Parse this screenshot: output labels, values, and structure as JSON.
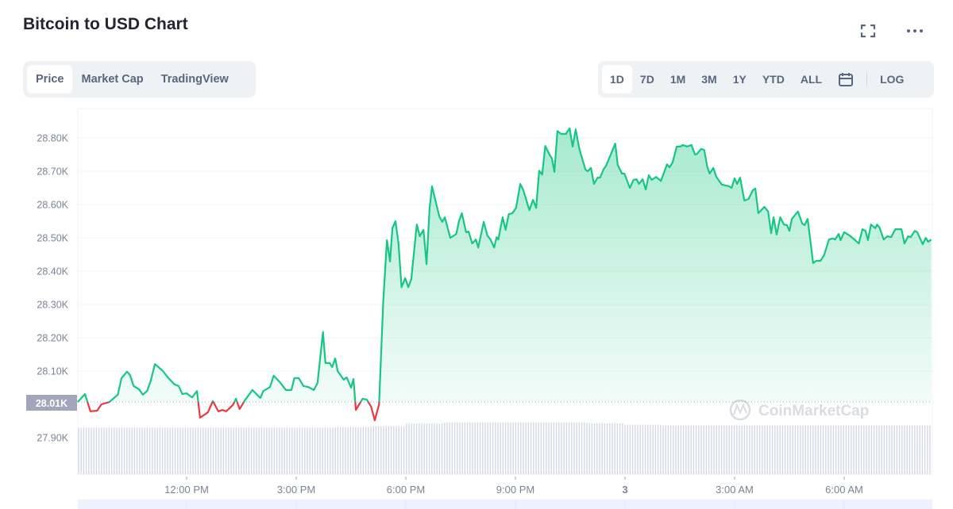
{
  "header": {
    "title": "Bitcoin to USD Chart",
    "fullscreen_icon": "expand-icon",
    "more_icon": "more-horizontal-icon"
  },
  "view_tabs": [
    {
      "label": "Price",
      "active": true
    },
    {
      "label": "Market Cap",
      "active": false
    },
    {
      "label": "TradingView",
      "active": false
    }
  ],
  "range_tabs": [
    {
      "label": "1D",
      "active": true
    },
    {
      "label": "7D",
      "active": false
    },
    {
      "label": "1M",
      "active": false
    },
    {
      "label": "3M",
      "active": false
    },
    {
      "label": "1Y",
      "active": false
    },
    {
      "label": "YTD",
      "active": false
    },
    {
      "label": "ALL",
      "active": false
    }
  ],
  "calendar_icon": "calendar-icon",
  "log_label": "LOG",
  "watermark": "CoinMarketCap",
  "colors": {
    "up": "#16c784",
    "down": "#ea3943",
    "baseline_label_bg": "#a1a7bb",
    "volume": "#d1d6e6",
    "navigator": "#eef2fe"
  },
  "chart_data": {
    "type": "area",
    "title": "",
    "xlabel": "",
    "ylabel": "",
    "ylim": [
      27800,
      28900
    ],
    "y_ticks": [
      "28.80K",
      "28.70K",
      "28.60K",
      "28.50K",
      "28.40K",
      "28.30K",
      "28.20K",
      "28.10K",
      "27.90K"
    ],
    "y_tick_values": [
      28800,
      28700,
      28600,
      28500,
      28400,
      28300,
      28200,
      28100,
      27900
    ],
    "x_ticks": [
      "12:00 PM",
      "3:00 PM",
      "6:00 PM",
      "9:00 PM",
      "3",
      "3:00 AM",
      "6:00 AM"
    ],
    "x_tick_times": [
      "12:00",
      "15:00",
      "18:00",
      "21:00",
      "24:00",
      "27:00",
      "30:00"
    ],
    "baseline": {
      "label": "28.01K",
      "value": 28007
    },
    "grid": true,
    "series": [
      {
        "points": [
          [
            "09:01",
            28007
          ],
          [
            "09:13",
            28031
          ],
          [
            "09:22",
            27979
          ],
          [
            "09:33",
            27981
          ],
          [
            "09:40",
            28000
          ],
          [
            "09:53",
            28007
          ],
          [
            "10:07",
            28029
          ],
          [
            "10:13",
            28079
          ],
          [
            "10:22",
            28098
          ],
          [
            "10:27",
            28088
          ],
          [
            "10:33",
            28055
          ],
          [
            "10:42",
            28045
          ],
          [
            "10:48",
            28029
          ],
          [
            "10:55",
            28040
          ],
          [
            "11:01",
            28071
          ],
          [
            "11:08",
            28121
          ],
          [
            "11:21",
            28100
          ],
          [
            "11:30",
            28079
          ],
          [
            "11:40",
            28060
          ],
          [
            "11:47",
            28055
          ],
          [
            "11:53",
            28031
          ],
          [
            "12:00",
            28033
          ],
          [
            "12:09",
            28021
          ],
          [
            "12:17",
            28040
          ],
          [
            "12:22",
            27960
          ],
          [
            "12:35",
            27976
          ],
          [
            "12:43",
            28010
          ],
          [
            "12:52",
            27979
          ],
          [
            "12:59",
            27983
          ],
          [
            "13:05",
            27979
          ],
          [
            "13:16",
            27998
          ],
          [
            "13:21",
            28017
          ],
          [
            "13:27",
            27986
          ],
          [
            "13:35",
            28010
          ],
          [
            "13:48",
            28043
          ],
          [
            "14:01",
            28019
          ],
          [
            "14:06",
            28040
          ],
          [
            "14:17",
            28052
          ],
          [
            "14:23",
            28086
          ],
          [
            "14:33",
            28067
          ],
          [
            "14:43",
            28043
          ],
          [
            "14:52",
            28043
          ],
          [
            "14:57",
            28079
          ],
          [
            "15:04",
            28079
          ],
          [
            "15:12",
            28055
          ],
          [
            "15:20",
            28052
          ],
          [
            "15:29",
            28043
          ],
          [
            "15:35",
            28064
          ],
          [
            "15:44",
            28217
          ],
          [
            "15:48",
            28124
          ],
          [
            "15:55",
            28124
          ],
          [
            "15:59",
            28112
          ],
          [
            "16:04",
            28138
          ],
          [
            "16:08",
            28100
          ],
          [
            "16:18",
            28074
          ],
          [
            "16:23",
            28081
          ],
          [
            "16:30",
            28050
          ],
          [
            "16:34",
            28076
          ],
          [
            "16:38",
            27983
          ],
          [
            "16:49",
            28017
          ],
          [
            "16:56",
            28014
          ],
          [
            "17:03",
            27993
          ],
          [
            "17:09",
            27952
          ],
          [
            "17:16",
            28000
          ],
          [
            "17:23",
            28310
          ],
          [
            "17:29",
            28493
          ],
          [
            "17:34",
            28429
          ],
          [
            "17:38",
            28529
          ],
          [
            "17:43",
            28550
          ],
          [
            "17:48",
            28483
          ],
          [
            "17:53",
            28352
          ],
          [
            "17:59",
            28379
          ],
          [
            "18:04",
            28352
          ],
          [
            "18:09",
            28376
          ],
          [
            "18:18",
            28540
          ],
          [
            "18:23",
            28505
          ],
          [
            "18:29",
            28524
          ],
          [
            "18:34",
            28421
          ],
          [
            "18:39",
            28588
          ],
          [
            "18:43",
            28655
          ],
          [
            "18:55",
            28564
          ],
          [
            "19:00",
            28548
          ],
          [
            "19:04",
            28562
          ],
          [
            "19:13",
            28500
          ],
          [
            "19:23",
            28512
          ],
          [
            "19:27",
            28548
          ],
          [
            "19:32",
            28574
          ],
          [
            "19:39",
            28517
          ],
          [
            "19:43",
            28519
          ],
          [
            "19:49",
            28483
          ],
          [
            "19:55",
            28495
          ],
          [
            "19:59",
            28471
          ],
          [
            "20:08",
            28548
          ],
          [
            "20:14",
            28507
          ],
          [
            "20:19",
            28495
          ],
          [
            "20:25",
            28471
          ],
          [
            "20:29",
            28502
          ],
          [
            "20:32",
            28495
          ],
          [
            "20:39",
            28562
          ],
          [
            "20:44",
            28524
          ],
          [
            "20:49",
            28571
          ],
          [
            "20:55",
            28574
          ],
          [
            "21:01",
            28590
          ],
          [
            "21:08",
            28662
          ],
          [
            "21:13",
            28643
          ],
          [
            "21:23",
            28583
          ],
          [
            "21:29",
            28614
          ],
          [
            "21:34",
            28590
          ],
          [
            "21:39",
            28702
          ],
          [
            "21:44",
            28690
          ],
          [
            "21:49",
            28776
          ],
          [
            "21:56",
            28750
          ],
          [
            "22:00",
            28738
          ],
          [
            "22:04",
            28698
          ],
          [
            "22:09",
            28821
          ],
          [
            "22:15",
            28812
          ],
          [
            "22:23",
            28812
          ],
          [
            "22:29",
            28829
          ],
          [
            "22:34",
            28774
          ],
          [
            "22:39",
            28826
          ],
          [
            "22:45",
            28767
          ],
          [
            "22:55",
            28705
          ],
          [
            "22:59",
            28700
          ],
          [
            "23:04",
            28710
          ],
          [
            "23:09",
            28662
          ],
          [
            "23:15",
            28681
          ],
          [
            "23:19",
            28681
          ],
          [
            "23:25",
            28707
          ],
          [
            "23:29",
            28717
          ],
          [
            "23:44",
            28783
          ],
          [
            "23:48",
            28719
          ],
          [
            "23:55",
            28693
          ],
          [
            "23:59",
            28693
          ],
          [
            "00:08",
            28650
          ],
          [
            "00:14",
            28674
          ],
          [
            "00:19",
            28676
          ],
          [
            "00:23",
            28662
          ],
          [
            "00:29",
            28676
          ],
          [
            "00:34",
            28645
          ],
          [
            "00:39",
            28688
          ],
          [
            "00:44",
            28674
          ],
          [
            "00:51",
            28683
          ],
          [
            "00:59",
            28671
          ],
          [
            "01:09",
            28721
          ],
          [
            "01:13",
            28712
          ],
          [
            "01:18",
            28726
          ],
          [
            "01:25",
            28774
          ],
          [
            "01:31",
            28774
          ],
          [
            "01:35",
            28779
          ],
          [
            "01:42",
            28774
          ],
          [
            "01:49",
            28779
          ],
          [
            "01:55",
            28750
          ],
          [
            "01:58",
            28752
          ],
          [
            "02:05",
            28767
          ],
          [
            "02:10",
            28764
          ],
          [
            "02:15",
            28714
          ],
          [
            "02:19",
            28693
          ],
          [
            "02:25",
            28710
          ],
          [
            "02:30",
            28683
          ],
          [
            "02:39",
            28660
          ],
          [
            "02:51",
            28655
          ],
          [
            "02:55",
            28650
          ],
          [
            "03:00",
            28679
          ],
          [
            "03:04",
            28662
          ],
          [
            "03:09",
            28681
          ],
          [
            "03:16",
            28612
          ],
          [
            "03:23",
            28617
          ],
          [
            "03:30",
            28643
          ],
          [
            "03:34",
            28648
          ],
          [
            "03:39",
            28574
          ],
          [
            "03:49",
            28593
          ],
          [
            "03:55",
            28579
          ],
          [
            "04:00",
            28514
          ],
          [
            "04:04",
            28562
          ],
          [
            "04:09",
            28510
          ],
          [
            "04:15",
            28562
          ],
          [
            "04:21",
            28540
          ],
          [
            "04:26",
            28538
          ],
          [
            "04:30",
            28521
          ],
          [
            "04:34",
            28557
          ],
          [
            "04:44",
            28579
          ],
          [
            "04:51",
            28543
          ],
          [
            "04:55",
            28538
          ],
          [
            "05:00",
            28557
          ],
          [
            "05:09",
            28424
          ],
          [
            "05:14",
            28431
          ],
          [
            "05:21",
            28431
          ],
          [
            "05:27",
            28448
          ],
          [
            "05:35",
            28495
          ],
          [
            "05:41",
            28498
          ],
          [
            "05:45",
            28495
          ],
          [
            "05:51",
            28512
          ],
          [
            "05:54",
            28493
          ],
          [
            "06:00",
            28517
          ],
          [
            "06:09",
            28507
          ],
          [
            "06:18",
            28493
          ],
          [
            "06:24",
            28483
          ],
          [
            "06:30",
            28526
          ],
          [
            "06:35",
            28521
          ],
          [
            "06:39",
            28493
          ],
          [
            "06:44",
            28540
          ],
          [
            "06:51",
            28529
          ],
          [
            "06:54",
            28540
          ],
          [
            "06:58",
            28531
          ],
          [
            "07:05",
            28495
          ],
          [
            "07:11",
            28505
          ],
          [
            "07:17",
            28502
          ],
          [
            "07:24",
            28526
          ],
          [
            "07:34",
            28526
          ],
          [
            "07:39",
            28483
          ],
          [
            "07:45",
            28505
          ],
          [
            "07:49",
            28502
          ],
          [
            "07:56",
            28521
          ],
          [
            "08:00",
            28517
          ],
          [
            "08:09",
            28481
          ],
          [
            "08:14",
            28500
          ],
          [
            "08:18",
            28488
          ],
          [
            "08:23",
            28495
          ]
        ]
      }
    ],
    "volume_relative_by_hour": [
      0.9,
      0.9,
      0.9,
      0.9,
      0.9,
      0.9,
      0.9,
      0.91,
      0.93,
      0.98,
      1.0,
      1.0,
      1.0,
      1.0,
      0.99,
      0.96,
      0.94,
      0.94,
      0.94,
      0.94,
      0.94,
      0.94,
      0.94,
      0.94
    ]
  }
}
